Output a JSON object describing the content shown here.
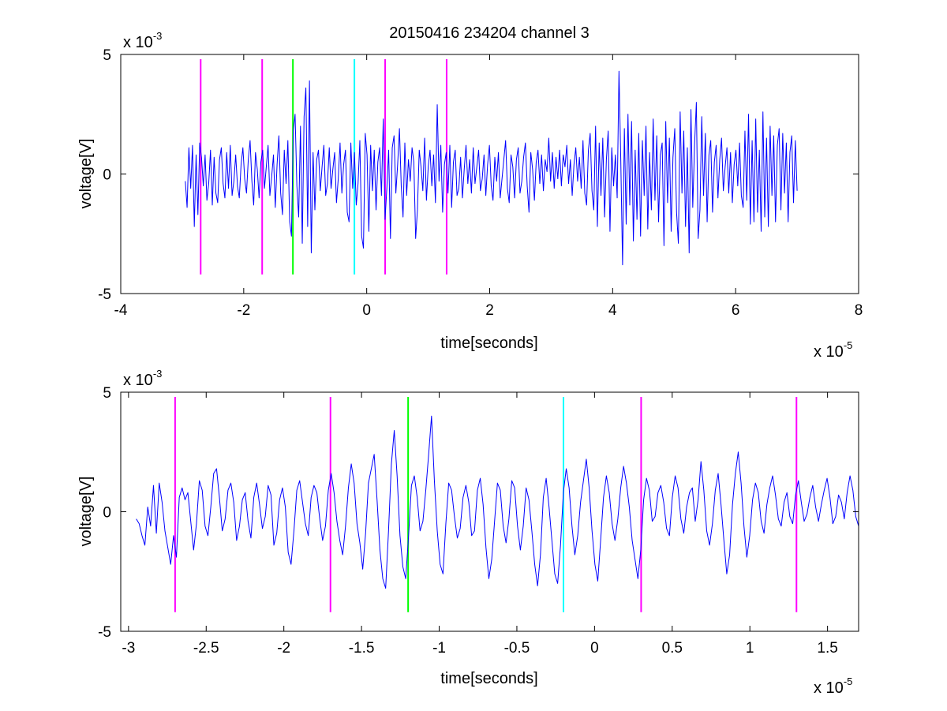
{
  "figure": {
    "title": "20150416 234204 channel 3",
    "background": "#ffffff"
  },
  "chart_data": [
    {
      "type": "line",
      "xlabel": "time[seconds]",
      "ylabel": "voltage[V]",
      "x_exponent": "x 10",
      "x_exponent_power": "-5",
      "y_exponent": "x 10",
      "y_exponent_power": "-3",
      "xlim": [
        -4,
        8
      ],
      "ylim": [
        -5,
        5
      ],
      "xticks": [
        -4,
        -2,
        0,
        2,
        4,
        6,
        8
      ],
      "xtick_labels": [
        "-4",
        "-2",
        "0",
        "2",
        "4",
        "6",
        "8"
      ],
      "yticks": [
        -5,
        0,
        5
      ],
      "ytick_labels": [
        "-5",
        "0",
        "5"
      ],
      "grid": false,
      "signal": {
        "color": "#0000ff",
        "x_start": -2.95,
        "x_end": 7.0,
        "y": [
          -0.3,
          -1.4,
          1.1,
          -0.6,
          1.2,
          -2.2,
          0.8,
          -1.7,
          1.3,
          0.7,
          -0.5,
          0.8,
          -1.1,
          -0.4,
          1.0,
          -1.3,
          0.7,
          -0.8,
          -1.2,
          0.6,
          1.1,
          -0.4,
          -1.0,
          0.9,
          -0.6,
          1.2,
          -0.9,
          -0.3,
          0.8,
          -0.5,
          -1.0,
          0.4,
          1.1,
          -0.2,
          -0.8,
          0.6,
          1.4,
          -0.3,
          -1.3,
          0.9,
          0.2,
          -1.0,
          0.5,
          1.0,
          -0.6,
          0.3,
          1.2,
          -0.9,
          -0.1,
          0.8,
          -1.4,
          0.4,
          1.6,
          -0.8,
          -1.7,
          1.0,
          -0.4,
          1.4,
          -2.0,
          -2.6,
          1.8,
          2.5,
          -0.5,
          -1.8,
          2.0,
          -2.9,
          2.4,
          3.6,
          -2.2,
          3.9,
          -3.3,
          0.9,
          -1.5,
          0.6,
          1.0,
          -0.7,
          0.3,
          1.2,
          -0.9,
          -0.4,
          1.1,
          -0.6,
          0.2,
          0.9,
          -1.2,
          -0.2,
          1.3,
          -0.8,
          0.4,
          1.0,
          -1.6,
          -2.0,
          1.3,
          -0.6,
          0.9,
          -1.3,
          -0.4,
          1.4,
          -2.6,
          -3.1,
          1.7,
          0.8,
          -2.4,
          1.2,
          -0.7,
          1.0,
          -1.5,
          0.5,
          1.1,
          -0.9,
          2.3,
          -1.9,
          -0.6,
          1.0,
          -2.7,
          1.1,
          1.6,
          -0.8,
          0.4,
          1.9,
          -0.5,
          -1.8,
          1.3,
          -0.9,
          0.6,
          -0.3,
          1.1,
          0.5,
          -2.7,
          -1.5,
          1.0,
          0.3,
          -0.7,
          1.5,
          -1.1,
          0.3,
          1.0,
          -0.5,
          0.8,
          -1.2,
          2.9,
          -0.3,
          1.2,
          -1.6,
          0.4,
          0.9,
          -0.8,
          1.2,
          -1.4,
          0.5,
          1.0,
          -0.9,
          -0.6,
          0.7,
          -1.0,
          0.2,
          1.2,
          -0.4,
          0.6,
          -0.8,
          1.1,
          -0.4,
          0.3,
          1.0,
          -0.7,
          -0.2,
          0.8,
          -0.9,
          0.4,
          1.2,
          -0.5,
          -1.1,
          0.7,
          -0.3,
          0.9,
          -1.0,
          -0.2,
          0.6,
          1.4,
          -0.6,
          -1.2,
          0.8,
          0.3,
          -1.0,
          0.6,
          1.1,
          -0.8,
          -0.3,
          0.7,
          1.3,
          -0.5,
          -1.6,
          0.9,
          0.2,
          -1.1,
          0.5,
          1.0,
          -0.4,
          0.8,
          -0.7,
          0.6,
          0.1,
          1.5,
          -0.3,
          0.9,
          -0.6,
          0.7,
          -0.2,
          1.0,
          -0.5,
          0.8,
          0.3,
          1.2,
          -0.4,
          0.6,
          -0.9,
          0.4,
          1.1,
          -0.3,
          0.7,
          -0.6,
          1.4,
          -0.8,
          -1.3,
          1.0,
          1.7,
          -0.7,
          -1.5,
          2.0,
          -2.2,
          1.3,
          -0.9,
          1.5,
          -1.8,
          0.6,
          1.8,
          -2.4,
          1.1,
          -0.5,
          0.8,
          -1.0,
          4.3,
          0.6,
          -3.8,
          1.9,
          -2.1,
          2.5,
          -1.3,
          2.2,
          -2.8,
          1.0,
          -1.9,
          1.7,
          -2.6,
          1.4,
          -0.9,
          2.0,
          -2.3,
          0.9,
          -1.5,
          2.3,
          -1.1,
          1.6,
          -2.0,
          0.8,
          1.3,
          -3.0,
          2.2,
          -1.2,
          1.5,
          -2.4,
          0.7,
          1.9,
          -1.6,
          -2.9,
          2.6,
          -0.8,
          1.8,
          -2.2,
          1.1,
          -3.3,
          2.7,
          -1.4,
          1.2,
          3.0,
          -2.7,
          -1.5,
          2.4,
          -0.9,
          1.7,
          -2.0,
          0.8,
          1.4,
          -1.6,
          0.5,
          1.2,
          -1.0,
          0.6,
          1.5,
          -0.7,
          0.3,
          1.1,
          -0.8,
          0.9,
          -1.2,
          0.4,
          1.0,
          -0.5,
          1.3,
          -0.9,
          -1.4,
          1.8,
          -1.1,
          2.5,
          -2.1,
          1.4,
          -2.0,
          2.3,
          -1.6,
          1.0,
          -2.4,
          2.6,
          -1.8,
          1.5,
          -2.2,
          2.0,
          -0.9,
          1.6,
          -2.0,
          1.2,
          1.9,
          -1.5,
          1.7,
          -0.8,
          1.3,
          -2.0,
          0.9,
          1.6,
          -1.2,
          1.4,
          -0.7
        ]
      },
      "markers": [
        {
          "x": -2.7,
          "color": "#ff00ff"
        },
        {
          "x": -1.7,
          "color": "#ff00ff"
        },
        {
          "x": -1.2,
          "color": "#00ff00"
        },
        {
          "x": -0.2,
          "color": "#00ffff"
        },
        {
          "x": 0.3,
          "color": "#ff00ff"
        },
        {
          "x": 1.3,
          "color": "#ff00ff"
        }
      ],
      "marker_y": [
        -4.2,
        4.8
      ]
    },
    {
      "type": "line",
      "xlabel": "time[seconds]",
      "ylabel": "voltage[V]",
      "x_exponent": "x 10",
      "x_exponent_power": "-5",
      "y_exponent": "x 10",
      "y_exponent_power": "-3",
      "xlim": [
        -3.05,
        1.7
      ],
      "ylim": [
        -5,
        5
      ],
      "xticks": [
        -3,
        -2.5,
        -2,
        -1.5,
        -1,
        -0.5,
        0,
        0.5,
        1,
        1.5
      ],
      "xtick_labels": [
        "-3",
        "-2.5",
        "-2",
        "-1.5",
        "-1",
        "-0.5",
        "0",
        "0.5",
        "1",
        "1.5"
      ],
      "yticks": [
        -5,
        0,
        5
      ],
      "ytick_labels": [
        "-5",
        "0",
        "5"
      ],
      "grid": false,
      "signal": {
        "color": "#0000ff",
        "x_start": -2.95,
        "x_end": 1.7,
        "y": [
          -0.3,
          -0.5,
          -1.0,
          -1.4,
          0.2,
          -0.6,
          1.1,
          -0.9,
          1.2,
          0.4,
          -0.8,
          -1.5,
          -2.2,
          -1.0,
          -1.9,
          0.6,
          1.0,
          0.5,
          0.8,
          -0.4,
          -1.6,
          -0.5,
          1.3,
          0.9,
          -0.6,
          -1.0,
          0.2,
          1.6,
          1.8,
          0.6,
          -0.8,
          -0.3,
          0.9,
          1.2,
          0.4,
          -1.2,
          -0.6,
          0.5,
          0.8,
          -0.4,
          -1.1,
          0.6,
          1.2,
          0.3,
          -0.7,
          -0.2,
          1.1,
          0.7,
          -1.4,
          -0.9,
          0.5,
          1.0,
          0.2,
          -1.7,
          -2.2,
          -0.8,
          0.9,
          1.3,
          0.4,
          -0.5,
          -1.0,
          0.6,
          1.1,
          0.8,
          -0.3,
          -1.2,
          -0.6,
          0.9,
          1.6,
          0.8,
          -0.4,
          -1.2,
          -1.8,
          -0.6,
          1.0,
          2.0,
          1.2,
          -0.5,
          -1.3,
          -2.4,
          -0.9,
          1.2,
          1.8,
          2.4,
          0.5,
          -1.6,
          -2.8,
          -3.2,
          -0.8,
          2.0,
          3.4,
          1.5,
          -1.0,
          -2.3,
          -2.8,
          -1.0,
          1.1,
          1.5,
          0.6,
          -0.8,
          -0.4,
          0.9,
          2.4,
          4.0,
          1.3,
          -0.8,
          -2.2,
          -2.6,
          -0.5,
          1.2,
          0.9,
          -0.2,
          -1.1,
          -0.7,
          0.6,
          1.1,
          0.4,
          -1.0,
          -0.8,
          0.9,
          1.4,
          0.3,
          -1.5,
          -2.8,
          -2.0,
          -0.4,
          1.2,
          0.9,
          -0.6,
          -1.3,
          -0.3,
          1.3,
          1.0,
          -0.6,
          -1.6,
          -0.6,
          1.0,
          0.5,
          -0.8,
          -2.2,
          -3.1,
          -1.8,
          0.6,
          1.4,
          0.2,
          -1.2,
          -2.6,
          -3.0,
          -1.4,
          0.8,
          1.8,
          1.0,
          -0.6,
          -1.8,
          -1.0,
          0.4,
          1.3,
          2.2,
          1.0,
          -0.8,
          -2.2,
          -2.9,
          -1.2,
          0.6,
          1.5,
          0.8,
          -0.5,
          -1.2,
          -0.3,
          1.0,
          1.9,
          1.2,
          0.2,
          -1.2,
          -2.0,
          -2.8,
          -1.6,
          0.5,
          1.4,
          0.9,
          -0.4,
          -0.2,
          0.8,
          1.1,
          0.4,
          -0.7,
          -1.0,
          0.6,
          1.5,
          1.0,
          -0.3,
          -0.9,
          0.2,
          0.8,
          1.0,
          -0.4,
          0.5,
          2.1,
          0.9,
          -0.8,
          -1.4,
          -0.5,
          0.9,
          1.6,
          0.3,
          -1.2,
          -2.6,
          -1.8,
          0.3,
          1.6,
          2.5,
          1.2,
          -0.6,
          -1.9,
          -1.0,
          0.5,
          1.2,
          0.8,
          -0.4,
          -0.9,
          0.3,
          1.0,
          1.5,
          0.7,
          -0.3,
          -0.6,
          0.4,
          0.8,
          -0.2,
          -0.5,
          0.7,
          1.3,
          0.4,
          -0.4,
          -0.1,
          0.6,
          1.1,
          0.2,
          -0.4,
          0.3,
          0.9,
          1.4,
          0.6,
          -0.5,
          -0.2,
          0.7,
          0.4,
          -0.3,
          0.8,
          1.5,
          0.9,
          -0.2,
          -0.6
        ]
      },
      "markers": [
        {
          "x": -2.7,
          "color": "#ff00ff"
        },
        {
          "x": -1.7,
          "color": "#ff00ff"
        },
        {
          "x": -1.2,
          "color": "#00ff00"
        },
        {
          "x": -0.2,
          "color": "#00ffff"
        },
        {
          "x": 0.3,
          "color": "#ff00ff"
        },
        {
          "x": 1.3,
          "color": "#ff00ff"
        }
      ],
      "marker_y": [
        -4.2,
        4.8
      ]
    }
  ]
}
